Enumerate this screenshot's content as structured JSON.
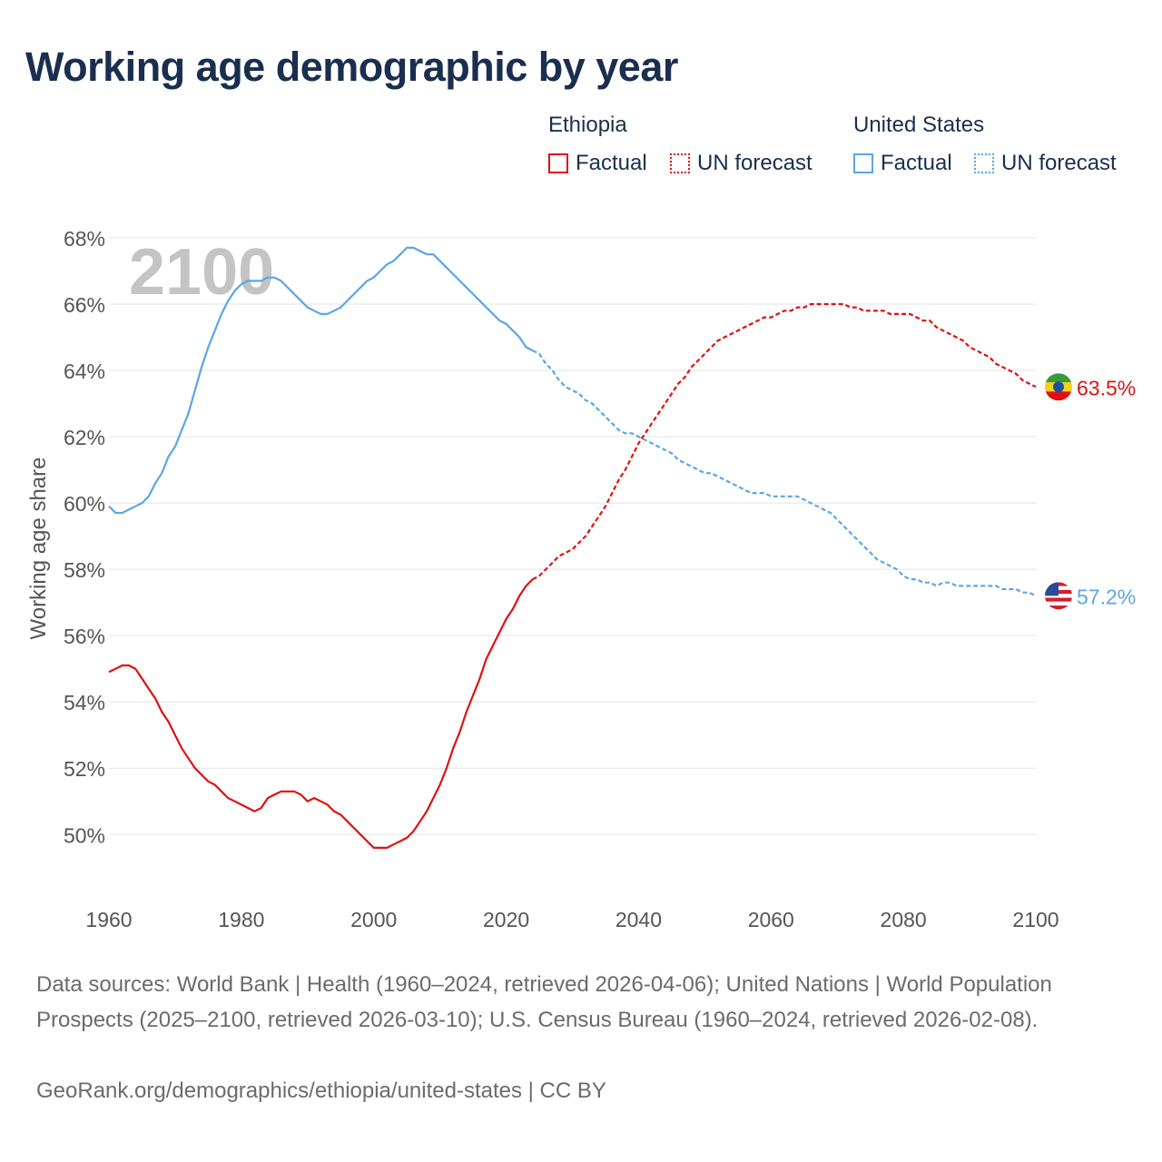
{
  "title": "Working age demographic by year",
  "legend": {
    "ethiopia": {
      "name": "Ethiopia",
      "factual": "Factual",
      "forecast": "UN forecast",
      "color": "#e01010"
    },
    "us": {
      "name": "United States",
      "factual": "Factual",
      "forecast": "UN forecast",
      "color": "#5aa6e6"
    }
  },
  "year_watermark": "2100",
  "footer": {
    "sources": "Data sources: World Bank | Health (1960–2024, retrieved 2026-04-06); United Nations | World Population Prospects (2025–2100, retrieved 2026-03-10); U.S. Census Bureau (1960–2024, retrieved 2026-02-08).",
    "credit": "GeoRank.org/demographics/ethiopia/united-states | CC BY"
  },
  "chart_data": {
    "type": "line",
    "title": "Working age demographic by year",
    "xlabel": "",
    "ylabel": "Working age share",
    "xlim": [
      1960,
      2100
    ],
    "ylim": [
      48.2,
      68.6
    ],
    "x_ticks": [
      1960,
      1980,
      2000,
      2020,
      2040,
      2060,
      2080,
      2100
    ],
    "x_tick_labels": [
      "1960",
      "1980",
      "2000",
      "2020",
      "2040",
      "2060",
      "2080",
      "2100"
    ],
    "y_ticks": [
      50,
      52,
      54,
      56,
      58,
      60,
      62,
      64,
      66,
      68
    ],
    "y_tick_labels": [
      "50%",
      "52%",
      "54%",
      "56%",
      "58%",
      "60%",
      "62%",
      "64%",
      "66%",
      "68%"
    ],
    "grid": true,
    "series": [
      {
        "name": "Ethiopia",
        "color": "#e01010",
        "end_label": "63.5%",
        "flag": "ethiopia",
        "factual": {
          "x": [
            1960,
            1961,
            1962,
            1963,
            1964,
            1965,
            1966,
            1967,
            1968,
            1969,
            1970,
            1971,
            1972,
            1973,
            1974,
            1975,
            1976,
            1977,
            1978,
            1979,
            1980,
            1981,
            1982,
            1983,
            1984,
            1985,
            1986,
            1987,
            1988,
            1989,
            1990,
            1991,
            1992,
            1993,
            1994,
            1995,
            1996,
            1997,
            1998,
            1999,
            2000,
            2001,
            2002,
            2003,
            2004,
            2005,
            2006,
            2007,
            2008,
            2009,
            2010,
            2011,
            2012,
            2013,
            2014,
            2015,
            2016,
            2017,
            2018,
            2019,
            2020,
            2021,
            2022,
            2023,
            2024
          ],
          "y": [
            54.9,
            55.0,
            55.1,
            55.1,
            55.0,
            54.7,
            54.4,
            54.1,
            53.7,
            53.4,
            53.0,
            52.6,
            52.3,
            52.0,
            51.8,
            51.6,
            51.5,
            51.3,
            51.1,
            51.0,
            50.9,
            50.8,
            50.7,
            50.8,
            51.1,
            51.2,
            51.3,
            51.3,
            51.3,
            51.2,
            51.0,
            51.1,
            51.0,
            50.9,
            50.7,
            50.6,
            50.4,
            50.2,
            50.0,
            49.8,
            49.6,
            49.6,
            49.6,
            49.7,
            49.8,
            49.9,
            50.1,
            50.4,
            50.7,
            51.1,
            51.5,
            52.0,
            52.6,
            53.1,
            53.7,
            54.2,
            54.7,
            55.3,
            55.7,
            56.1,
            56.5,
            56.8,
            57.2,
            57.5,
            57.7
          ]
        },
        "forecast": {
          "x": [
            2024,
            2025,
            2026,
            2027,
            2028,
            2029,
            2030,
            2031,
            2032,
            2033,
            2034,
            2035,
            2036,
            2037,
            2038,
            2039,
            2040,
            2041,
            2042,
            2043,
            2044,
            2045,
            2046,
            2047,
            2048,
            2049,
            2050,
            2051,
            2052,
            2053,
            2054,
            2055,
            2056,
            2057,
            2058,
            2059,
            2060,
            2061,
            2062,
            2063,
            2064,
            2065,
            2066,
            2067,
            2068,
            2069,
            2070,
            2071,
            2072,
            2073,
            2074,
            2075,
            2076,
            2077,
            2078,
            2079,
            2080,
            2081,
            2082,
            2083,
            2084,
            2085,
            2086,
            2087,
            2088,
            2089,
            2090,
            2091,
            2092,
            2093,
            2094,
            2095,
            2096,
            2097,
            2098,
            2099,
            2100
          ],
          "y": [
            57.7,
            57.8,
            58.0,
            58.2,
            58.4,
            58.5,
            58.6,
            58.8,
            59.0,
            59.3,
            59.6,
            59.9,
            60.3,
            60.7,
            61.0,
            61.4,
            61.8,
            62.1,
            62.4,
            62.7,
            63.0,
            63.3,
            63.6,
            63.8,
            64.1,
            64.3,
            64.5,
            64.7,
            64.9,
            65.0,
            65.1,
            65.2,
            65.3,
            65.4,
            65.5,
            65.6,
            65.6,
            65.7,
            65.8,
            65.8,
            65.9,
            65.9,
            66.0,
            66.0,
            66.0,
            66.0,
            66.0,
            66.0,
            65.9,
            65.9,
            65.8,
            65.8,
            65.8,
            65.8,
            65.7,
            65.7,
            65.7,
            65.7,
            65.6,
            65.5,
            65.5,
            65.3,
            65.2,
            65.1,
            65.0,
            64.9,
            64.7,
            64.6,
            64.5,
            64.4,
            64.2,
            64.1,
            64.0,
            63.9,
            63.7,
            63.6,
            63.5
          ]
        }
      },
      {
        "name": "United States",
        "color": "#5aa6e6",
        "end_label": "57.2%",
        "flag": "united-states",
        "factual": {
          "x": [
            1960,
            1961,
            1962,
            1963,
            1964,
            1965,
            1966,
            1967,
            1968,
            1969,
            1970,
            1971,
            1972,
            1973,
            1974,
            1975,
            1976,
            1977,
            1978,
            1979,
            1980,
            1981,
            1982,
            1983,
            1984,
            1985,
            1986,
            1987,
            1988,
            1989,
            1990,
            1991,
            1992,
            1993,
            1994,
            1995,
            1996,
            1997,
            1998,
            1999,
            2000,
            2001,
            2002,
            2003,
            2004,
            2005,
            2006,
            2007,
            2008,
            2009,
            2010,
            2011,
            2012,
            2013,
            2014,
            2015,
            2016,
            2017,
            2018,
            2019,
            2020,
            2021,
            2022,
            2023,
            2024
          ],
          "y": [
            59.9,
            59.7,
            59.7,
            59.8,
            59.9,
            60.0,
            60.2,
            60.6,
            60.9,
            61.4,
            61.7,
            62.2,
            62.7,
            63.4,
            64.1,
            64.7,
            65.2,
            65.7,
            66.1,
            66.4,
            66.6,
            66.7,
            66.7,
            66.7,
            66.8,
            66.8,
            66.7,
            66.5,
            66.3,
            66.1,
            65.9,
            65.8,
            65.7,
            65.7,
            65.8,
            65.9,
            66.1,
            66.3,
            66.5,
            66.7,
            66.8,
            67.0,
            67.2,
            67.3,
            67.5,
            67.7,
            67.7,
            67.6,
            67.5,
            67.5,
            67.3,
            67.1,
            66.9,
            66.7,
            66.5,
            66.3,
            66.1,
            65.9,
            65.7,
            65.5,
            65.4,
            65.2,
            65.0,
            64.7,
            64.6
          ]
        },
        "forecast": {
          "x": [
            2024,
            2025,
            2026,
            2027,
            2028,
            2029,
            2030,
            2031,
            2032,
            2033,
            2034,
            2035,
            2036,
            2037,
            2038,
            2039,
            2040,
            2041,
            2042,
            2043,
            2044,
            2045,
            2046,
            2047,
            2048,
            2049,
            2050,
            2051,
            2052,
            2053,
            2054,
            2055,
            2056,
            2057,
            2058,
            2059,
            2060,
            2061,
            2062,
            2063,
            2064,
            2065,
            2066,
            2067,
            2068,
            2069,
            2070,
            2071,
            2072,
            2073,
            2074,
            2075,
            2076,
            2077,
            2078,
            2079,
            2080,
            2081,
            2082,
            2083,
            2084,
            2085,
            2086,
            2087,
            2088,
            2089,
            2090,
            2091,
            2092,
            2093,
            2094,
            2095,
            2096,
            2097,
            2098,
            2099,
            2100
          ],
          "y": [
            64.6,
            64.5,
            64.2,
            64.0,
            63.7,
            63.5,
            63.4,
            63.3,
            63.1,
            63.0,
            62.8,
            62.6,
            62.4,
            62.2,
            62.1,
            62.1,
            62.0,
            61.9,
            61.8,
            61.7,
            61.6,
            61.5,
            61.3,
            61.2,
            61.1,
            61.0,
            60.9,
            60.9,
            60.8,
            60.7,
            60.6,
            60.5,
            60.4,
            60.3,
            60.3,
            60.3,
            60.2,
            60.2,
            60.2,
            60.2,
            60.2,
            60.1,
            60.0,
            59.9,
            59.8,
            59.7,
            59.5,
            59.3,
            59.1,
            58.9,
            58.7,
            58.5,
            58.3,
            58.2,
            58.1,
            58.0,
            57.8,
            57.7,
            57.7,
            57.6,
            57.6,
            57.5,
            57.6,
            57.6,
            57.5,
            57.5,
            57.5,
            57.5,
            57.5,
            57.5,
            57.5,
            57.4,
            57.4,
            57.4,
            57.3,
            57.3,
            57.2
          ]
        }
      }
    ]
  }
}
